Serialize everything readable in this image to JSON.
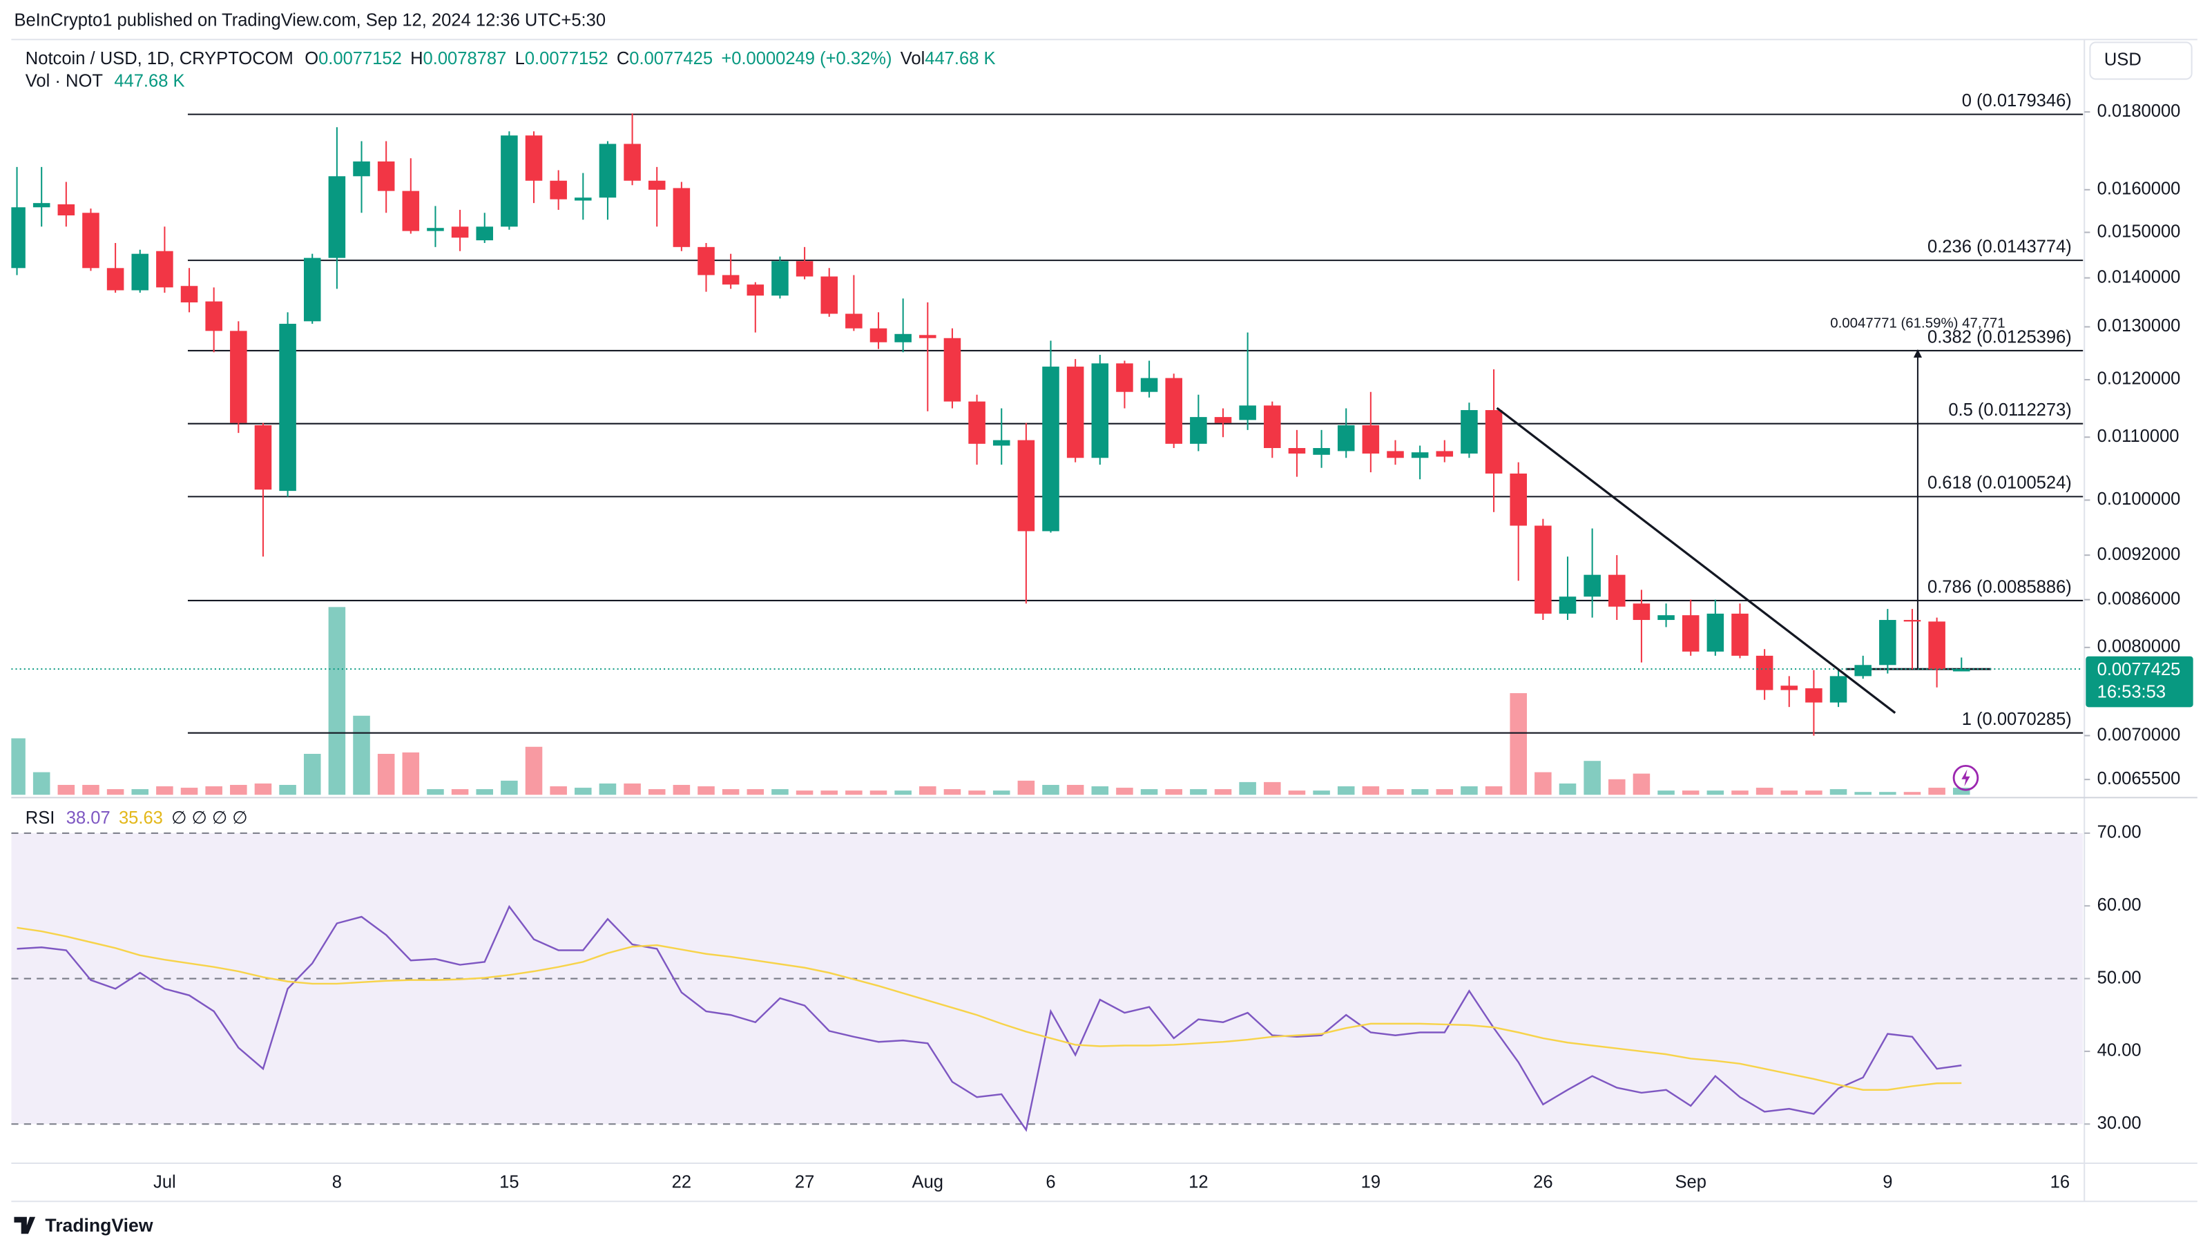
{
  "header": {
    "published": "BeInCrypto1 published on TradingView.com, Sep 12, 2024 12:36 UTC+5:30",
    "currency": "USD",
    "footer": "TradingView"
  },
  "chart_data": [
    {
      "type": "candlestick",
      "symbol": "Notcoin / USD, 1D, CRYPTOCOM",
      "legend": {
        "open": "O",
        "high": "H",
        "low": "L",
        "close": "C",
        "change": "+0.0000249 (+0.32%)",
        "vol": "Vol"
      },
      "categories": [
        null,
        null,
        null,
        null,
        null,
        null,
        "Jul",
        null,
        null,
        null,
        null,
        null,
        null,
        "8",
        null,
        null,
        null,
        null,
        null,
        null,
        "15",
        null,
        null,
        null,
        null,
        null,
        null,
        "22",
        null,
        null,
        null,
        null,
        "27",
        null,
        null,
        null,
        null,
        "Aug",
        null,
        null,
        null,
        null,
        "6",
        null,
        null,
        null,
        null,
        null,
        "12",
        null,
        null,
        null,
        null,
        null,
        null,
        "19",
        null,
        null,
        null,
        null,
        null,
        null,
        "26",
        null,
        null,
        null,
        null,
        null,
        "Sep",
        null,
        null,
        null,
        null,
        null,
        null,
        null,
        "9",
        null,
        null,
        null,
        null,
        null,
        null,
        "16"
      ],
      "open": [
        0.01421,
        0.01558,
        0.01565,
        0.01545,
        0.01421,
        0.01374,
        0.01458,
        0.01383,
        0.01351,
        0.01292,
        0.0112,
        0.01014,
        0.01311,
        0.01443,
        0.01633,
        0.0167,
        0.01597,
        0.01503,
        0.01513,
        0.01482,
        0.01513,
        0.01737,
        0.01622,
        0.01574,
        0.01581,
        0.01715,
        0.01622,
        0.01604,
        0.01467,
        0.01406,
        0.01386,
        0.01363,
        0.01436,
        0.01403,
        0.01326,
        0.01297,
        0.0127,
        0.01284,
        0.01278,
        0.01161,
        0.01086,
        0.01095,
        0.00954,
        0.01224,
        0.01066,
        0.0123,
        0.01178,
        0.01203,
        0.01089,
        0.01134,
        0.01129,
        0.01154,
        0.01082,
        0.01071,
        0.01077,
        0.0112,
        0.01077,
        0.01066,
        0.01077,
        0.01073,
        0.01146,
        0.01041,
        0.00962,
        0.00842,
        0.00864,
        0.00893,
        0.00855,
        0.00834,
        0.0084,
        0.00795,
        0.00842,
        0.0079,
        0.00755,
        0.00752,
        0.00736,
        0.00766,
        0.00779,
        0.00834,
        0.00832,
        0.0077152,
        null,
        null,
        null,
        null
      ],
      "high": [
        0.01656,
        0.01656,
        0.01619,
        0.01555,
        0.01476,
        0.01461,
        0.01513,
        0.01421,
        0.0138,
        0.01311,
        0.01124,
        0.01329,
        0.01452,
        0.01759,
        0.01722,
        0.01722,
        0.01678,
        0.01561,
        0.01552,
        0.01545,
        0.01748,
        0.01748,
        0.01648,
        0.01641,
        0.01722,
        0.01796,
        0.01656,
        0.01619,
        0.01476,
        0.01452,
        0.01391,
        0.01446,
        0.01467,
        0.01421,
        0.01406,
        0.01329,
        0.01357,
        0.01349,
        0.01297,
        0.01173,
        0.01149,
        0.01124,
        0.01273,
        0.01238,
        0.01246,
        0.01235,
        0.01235,
        0.01211,
        0.01173,
        0.01149,
        0.01289,
        0.01161,
        0.01112,
        0.01112,
        0.01149,
        0.01178,
        0.01095,
        0.01086,
        0.01095,
        0.01159,
        0.01219,
        0.01059,
        0.00972,
        0.00918,
        0.00958,
        0.0092,
        0.00873,
        0.00855,
        0.0086,
        0.0086,
        0.00855,
        0.00798,
        0.00766,
        0.00773,
        0.00774,
        0.0079,
        0.00848,
        0.00848,
        0.00837,
        0.0078787,
        null,
        null,
        null,
        null
      ],
      "low": [
        0.01406,
        0.01513,
        0.01513,
        0.01415,
        0.01369,
        0.01369,
        0.01369,
        0.01329,
        0.01251,
        0.01107,
        0.00918,
        0.01005,
        0.01306,
        0.01377,
        0.01545,
        0.01545,
        0.01497,
        0.01467,
        0.01458,
        0.01476,
        0.01506,
        0.01568,
        0.01552,
        0.01529,
        0.01529,
        0.01611,
        0.01513,
        0.01458,
        0.01371,
        0.01377,
        0.01289,
        0.01357,
        0.01397,
        0.0132,
        0.01292,
        0.01257,
        0.01251,
        0.01144,
        0.01149,
        0.01055,
        0.01055,
        0.00855,
        0.00952,
        0.01059,
        0.01055,
        0.01149,
        0.01168,
        0.01082,
        0.01077,
        0.011,
        0.01112,
        0.01066,
        0.01036,
        0.0105,
        0.01066,
        0.01043,
        0.01055,
        0.01032,
        0.01059,
        0.01066,
        0.00982,
        0.00885,
        0.00834,
        0.00834,
        0.00837,
        0.00834,
        0.00782,
        0.00825,
        0.0079,
        0.0079,
        0.00787,
        0.00739,
        0.00731,
        0.007,
        0.00731,
        0.00763,
        0.00769,
        0.00774,
        0.00753,
        0.0077152,
        null,
        null,
        null,
        null
      ],
      "close": [
        0.01558,
        0.01568,
        0.01539,
        0.01421,
        0.01374,
        0.01452,
        0.0138,
        0.01349,
        0.01292,
        0.01124,
        0.01016,
        0.01306,
        0.01443,
        0.01633,
        0.0167,
        0.01597,
        0.01503,
        0.0151,
        0.01488,
        0.01513,
        0.01737,
        0.01622,
        0.01577,
        0.01581,
        0.01715,
        0.01622,
        0.016,
        0.01467,
        0.01406,
        0.01386,
        0.01363,
        0.01436,
        0.01403,
        0.01326,
        0.01297,
        0.0127,
        0.01286,
        0.01278,
        0.01161,
        0.01089,
        0.01095,
        0.00954,
        0.01224,
        0.01066,
        0.0123,
        0.01178,
        0.01203,
        0.01089,
        0.01134,
        0.01124,
        0.01154,
        0.01082,
        0.01073,
        0.01082,
        0.0112,
        0.01073,
        0.01066,
        0.01075,
        0.01068,
        0.01146,
        0.01041,
        0.00962,
        0.00842,
        0.00864,
        0.00893,
        0.00851,
        0.00834,
        0.0084,
        0.00795,
        0.00842,
        0.0079,
        0.0075,
        0.0075,
        0.00736,
        0.00766,
        0.00779,
        0.00834,
        0.00832,
        0.00774,
        0.0077425,
        null,
        null,
        null,
        null
      ],
      "up_color": "#089981",
      "down_color": "#f23645",
      "log_scale": true,
      "ylim": [
        0.0064,
        0.02
      ],
      "yticks": [
        {
          "value": 0.00655,
          "label": "0.0065500"
        },
        {
          "value": 0.007,
          "label": "0.0070000"
        },
        {
          "value": 0.008,
          "label": "0.0080000"
        },
        {
          "value": 0.0086,
          "label": "0.0086000"
        },
        {
          "value": 0.0092,
          "label": "0.0092000"
        },
        {
          "value": 0.01,
          "label": "0.0100000"
        },
        {
          "value": 0.011,
          "label": "0.0110000"
        },
        {
          "value": 0.012,
          "label": "0.0120000"
        },
        {
          "value": 0.013,
          "label": "0.0130000"
        },
        {
          "value": 0.014,
          "label": "0.0140000"
        },
        {
          "value": 0.015,
          "label": "0.0150000"
        },
        {
          "value": 0.016,
          "label": "0.0160000"
        },
        {
          "value": 0.018,
          "label": "0.0180000"
        }
      ],
      "fib_levels": [
        {
          "value": 0.0179346,
          "label": "0 (0.0179346)"
        },
        {
          "value": 0.0143774,
          "label": "0.236 (0.0143774)"
        },
        {
          "value": 0.0125396,
          "label": "0.382 (0.0125396)"
        },
        {
          "value": 0.0112273,
          "label": "0.5 (0.0112273)"
        },
        {
          "value": 0.0100524,
          "label": "0.618 (0.0100524)"
        },
        {
          "value": 0.0085886,
          "label": "0.786 (0.0085886)"
        },
        {
          "value": 0.0070285,
          "label": "1 (0.0070285)"
        }
      ],
      "measure_label": "0.0047771 (61.59%) 47,771",
      "countdown": "16:53:53"
    },
    {
      "type": "volume",
      "title": "Vol · NOT",
      "values": [
        3600,
        1440,
        630,
        630,
        360,
        360,
        540,
        450,
        540,
        630,
        720,
        630,
        2610,
        11970,
        5040,
        2610,
        2700,
        360,
        360,
        360,
        900,
        3060,
        540,
        450,
        720,
        720,
        360,
        630,
        540,
        360,
        360,
        360,
        270,
        270,
        270,
        270,
        270,
        540,
        360,
        270,
        270,
        900,
        630,
        630,
        540,
        450,
        360,
        360,
        360,
        360,
        810,
        810,
        270,
        270,
        540,
        540,
        360,
        360,
        360,
        540,
        540,
        6480,
        1440,
        720,
        2160,
        990,
        1350,
        270,
        270,
        270,
        270,
        450,
        270,
        270,
        360,
        180,
        180,
        180,
        450,
        447.68,
        null,
        null,
        null,
        null
      ],
      "last_label": "447.68 K"
    },
    {
      "type": "rsi",
      "title": "RSI",
      "na_marks": "∅ ∅ ∅ ∅",
      "series": [
        {
          "color": "#7e57c2",
          "values": [
            54.1,
            54.3,
            53.9,
            49.8,
            48.6,
            50.8,
            48.6,
            47.7,
            45.5,
            40.5,
            37.6,
            48.6,
            52.1,
            57.6,
            58.5,
            56.0,
            52.5,
            52.7,
            51.9,
            52.3,
            59.9,
            55.4,
            53.9,
            53.9,
            58.2,
            54.7,
            54.1,
            48.1,
            45.5,
            45.0,
            44.0,
            47.3,
            46.3,
            42.8,
            42.0,
            41.3,
            41.5,
            41.1,
            35.8,
            33.7,
            34.1,
            29.2,
            45.5,
            39.5,
            47.1,
            45.3,
            46.1,
            41.8,
            44.4,
            44.0,
            45.3,
            42.2,
            42.0,
            42.2,
            45.0,
            42.6,
            42.2,
            42.6,
            42.6,
            48.3,
            43.2,
            38.5,
            32.7,
            34.7,
            36.6,
            35.0,
            34.3,
            34.7,
            32.5,
            36.6,
            33.7,
            31.7,
            32.1,
            31.4,
            34.9,
            36.4,
            42.4,
            42.0,
            37.6,
            38.07,
            null,
            null,
            null,
            null
          ]
        },
        {
          "color": "#f7d34a",
          "values": [
            57.0,
            56.5,
            55.8,
            55.0,
            54.2,
            53.2,
            52.6,
            52.1,
            51.6,
            51.0,
            50.2,
            49.6,
            49.3,
            49.3,
            49.5,
            49.7,
            49.8,
            49.8,
            49.9,
            50.1,
            50.5,
            51.0,
            51.6,
            52.3,
            53.5,
            54.4,
            54.6,
            54.0,
            53.4,
            53.0,
            52.5,
            52.0,
            51.5,
            50.8,
            49.9,
            49.0,
            48.0,
            47.0,
            46.0,
            45.0,
            43.8,
            42.7,
            41.8,
            40.9,
            40.7,
            40.8,
            40.8,
            40.9,
            41.1,
            41.3,
            41.6,
            42.0,
            42.2,
            42.4,
            43.2,
            43.8,
            43.8,
            43.8,
            43.7,
            43.6,
            43.3,
            42.6,
            41.8,
            41.2,
            40.8,
            40.4,
            40.0,
            39.6,
            39.0,
            38.7,
            38.3,
            37.6,
            36.9,
            36.2,
            35.4,
            34.7,
            34.7,
            35.2,
            35.6,
            35.63,
            null,
            null,
            null,
            null
          ]
        }
      ],
      "ylim": [
        25,
        74.5
      ],
      "yticks": [
        {
          "value": 30,
          "label": "30.00"
        },
        {
          "value": 40,
          "label": "40.00"
        },
        {
          "value": 50,
          "label": "50.00"
        },
        {
          "value": 60,
          "label": "60.00"
        },
        {
          "value": 70,
          "label": "70.00"
        }
      ],
      "levels": [
        70,
        50,
        30
      ],
      "band_color": "#7e57c2"
    }
  ]
}
